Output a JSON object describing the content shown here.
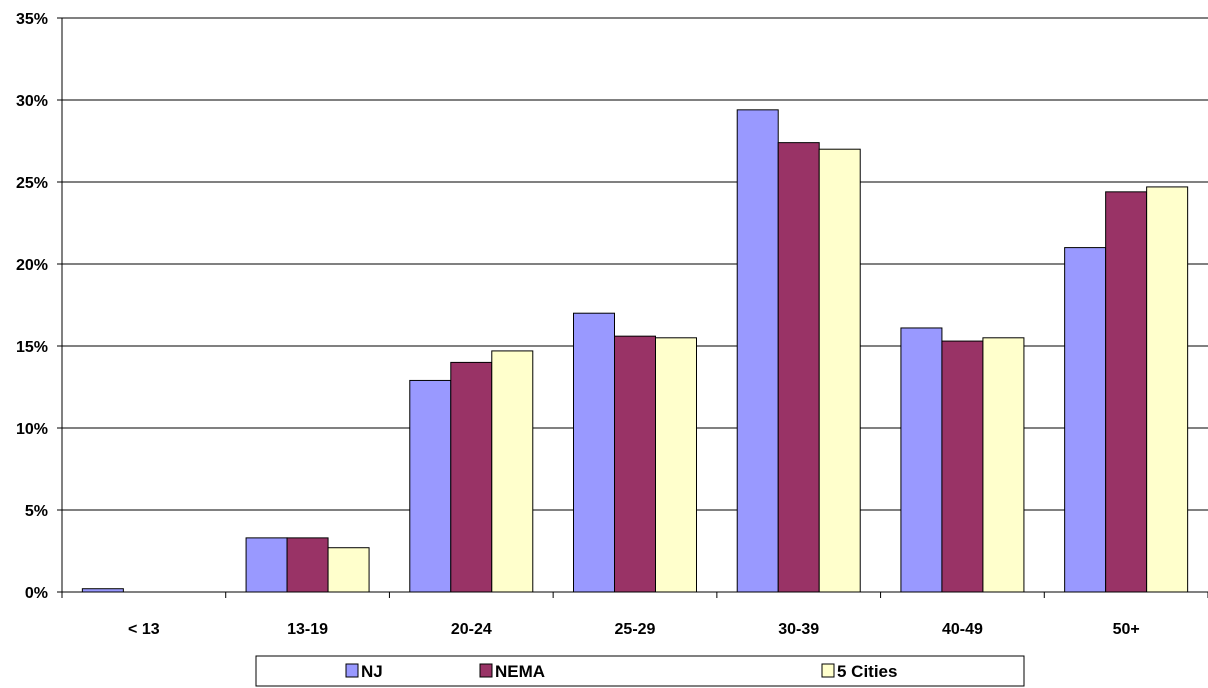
{
  "chart_data": {
    "type": "bar",
    "categories": [
      "< 13",
      "13-19",
      "20-24",
      "25-29",
      "30-39",
      "40-49",
      "50+"
    ],
    "series": [
      {
        "name": "NJ",
        "color": "#9999ff",
        "values": [
          0.2,
          3.3,
          12.9,
          17.0,
          29.4,
          16.1,
          21.0
        ]
      },
      {
        "name": "NEMA",
        "color": "#993366",
        "values": [
          0.0,
          3.3,
          14.0,
          15.6,
          27.4,
          15.3,
          24.4
        ]
      },
      {
        "name": "5 Cities",
        "color": "#ffffcc",
        "values": [
          0.0,
          2.7,
          14.7,
          15.5,
          27.0,
          15.5,
          24.7
        ]
      }
    ],
    "y_ticks": [
      "0%",
      "5%",
      "10%",
      "15%",
      "20%",
      "25%",
      "30%",
      "35%"
    ],
    "ylim": [
      0,
      35
    ],
    "title": "",
    "xlabel": "",
    "ylabel": "",
    "grid": true,
    "legend_position": "bottom"
  }
}
